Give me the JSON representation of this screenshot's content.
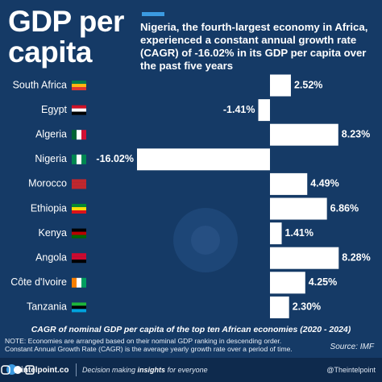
{
  "chart_data": {
    "type": "bar",
    "title": "GDP per capita",
    "subtitle": "Nigeria, the fourth-largest economy in Africa, experienced a constant annual growth rate (CAGR) of -16.02% in its GDP per capita over the past five years",
    "categories": [
      "South Africa",
      "Egypt",
      "Algeria",
      "Nigeria",
      "Morocco",
      "Ethiopia",
      "Kenya",
      "Angola",
      "Côte d'Ivoire",
      "Tanzania"
    ],
    "values": [
      2.52,
      -1.41,
      8.23,
      -16.02,
      4.49,
      6.86,
      1.41,
      8.28,
      4.25,
      2.3
    ],
    "value_labels": [
      "2.52%",
      "-1.41%",
      "8.23%",
      "-16.02%",
      "4.49%",
      "6.86%",
      "1.41%",
      "8.28%",
      "4.25%",
      "2.30%"
    ],
    "color": "#ffffff",
    "caption": "CAGR of nominal GDP per capita of the top ten African economies (2020 - 2024)",
    "notes": [
      "NOTE: Economies are arranged based on their nominal GDP ranking in descending order.",
      "Constant Annual Growth Rate (CAGR) is the average yearly growth rate over a period of time."
    ],
    "source": "Source: IMF"
  },
  "footer": {
    "brand": "intelpoint.co",
    "tagline": [
      "Decision making",
      "insights",
      "for everyone"
    ],
    "handle": "@Theintelpoint"
  }
}
